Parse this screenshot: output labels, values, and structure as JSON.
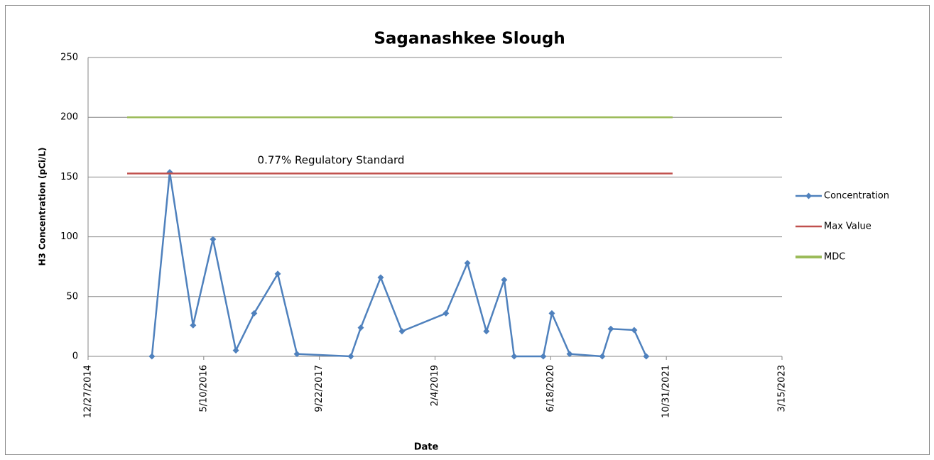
{
  "chart_data": {
    "type": "line",
    "title": "Saganashkee Slough",
    "x_label": "Date",
    "y_label": "H3 Concentration (pCi/L)",
    "annotation": "0.77% Regulatory Standard",
    "xlim": [
      "2014-12-27",
      "2023-03-15"
    ],
    "xticks": [
      {
        "value": "2014-12-27",
        "label": "12/27/2014"
      },
      {
        "value": "2016-05-10",
        "label": "5/10/2016"
      },
      {
        "value": "2017-09-22",
        "label": "9/22/2017"
      },
      {
        "value": "2019-02-04",
        "label": "2/4/2019"
      },
      {
        "value": "2020-06-18",
        "label": "6/18/2020"
      },
      {
        "value": "2021-10-31",
        "label": "10/31/2021"
      },
      {
        "value": "2023-03-15",
        "label": "3/15/2023"
      }
    ],
    "ylim": [
      0,
      250
    ],
    "yticks": [
      0,
      50,
      100,
      150,
      200,
      250
    ],
    "grid": true,
    "legend": "right",
    "series": [
      {
        "name": "Concentration",
        "color": "#4f81bd",
        "markers": true,
        "x": [
          "2015-09-29",
          "2015-12-15",
          "2016-03-25",
          "2016-06-19",
          "2016-09-26",
          "2016-12-14",
          "2017-03-26",
          "2017-06-17",
          "2018-02-05",
          "2018-03-20",
          "2018-06-14",
          "2018-09-14",
          "2019-03-23",
          "2019-06-24",
          "2019-09-14",
          "2019-11-30",
          "2020-01-12",
          "2020-05-17",
          "2020-06-23",
          "2020-09-08",
          "2021-01-27",
          "2021-03-05",
          "2021-06-14",
          "2021-08-05"
        ],
        "values": [
          0,
          154,
          26,
          98,
          5,
          36,
          69,
          2,
          0,
          24,
          66,
          21,
          36,
          78,
          21,
          64,
          0,
          0,
          36,
          2,
          0,
          23,
          22,
          0
        ]
      },
      {
        "name": "Max Value",
        "color": "#c0504d",
        "markers": false,
        "x": [
          "2015-06-14",
          "2021-11-27"
        ],
        "values": [
          153,
          153
        ]
      },
      {
        "name": "MDC",
        "color": "#9bbb59",
        "markers": false,
        "x": [
          "2015-06-14",
          "2021-11-27"
        ],
        "values": [
          200,
          200
        ]
      }
    ]
  }
}
